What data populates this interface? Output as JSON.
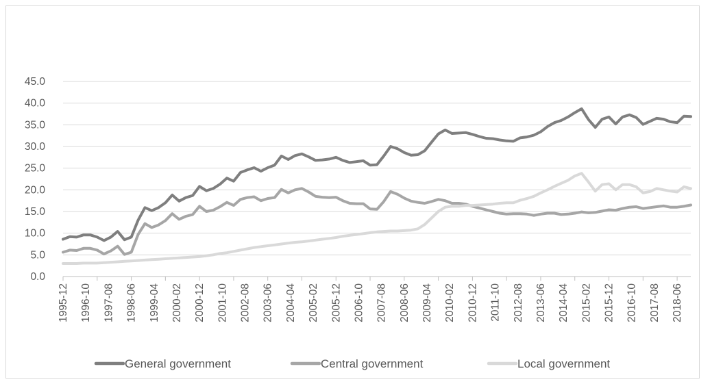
{
  "chart_data": {
    "type": "line",
    "title": "",
    "xlabel": "",
    "ylabel": "",
    "ylim": [
      0,
      45
    ],
    "y_ticks": [
      "0.0",
      "5.0",
      "10.0",
      "15.0",
      "20.0",
      "25.0",
      "30.0",
      "35.0",
      "40.0",
      "45.0"
    ],
    "x_tick_labels": [
      "1995-12",
      "1996-10",
      "1997-08",
      "1998-06",
      "1999-04",
      "2000-02",
      "2000-12",
      "2001-10",
      "2002-08",
      "2003-06",
      "2004-04",
      "2005-02",
      "2005-12",
      "2006-10",
      "2007-08",
      "2008-06",
      "2009-04",
      "2010-02",
      "2010-12",
      "2011-10",
      "2012-08",
      "2013-06",
      "2014-04",
      "2015-02",
      "2015-12",
      "2016-10",
      "2017-08",
      "2018-06"
    ],
    "x_start": "1995-12",
    "x_end": "2018-12",
    "grid": "horizontal",
    "legend_position": "bottom",
    "series": [
      {
        "name": "General government",
        "color": "#7f7f7f",
        "values": [
          8.6,
          9.2,
          9.1,
          9.6,
          9.6,
          9.1,
          8.3,
          9.1,
          10.4,
          8.5,
          9.1,
          13.0,
          15.9,
          15.2,
          15.9,
          17.0,
          18.8,
          17.4,
          18.2,
          18.7,
          20.8,
          19.8,
          20.3,
          21.3,
          22.7,
          22.0,
          24.0,
          24.6,
          25.1,
          24.3,
          25.1,
          25.7,
          27.8,
          27.0,
          27.9,
          28.3,
          27.6,
          26.8,
          26.9,
          27.1,
          27.5,
          26.8,
          26.3,
          26.5,
          26.7,
          25.7,
          25.8,
          27.8,
          30.0,
          29.5,
          28.6,
          28.0,
          28.1,
          29.0,
          31.0,
          32.9,
          33.8,
          33.0,
          33.1,
          33.2,
          32.8,
          32.3,
          31.9,
          31.8,
          31.5,
          31.3,
          31.2,
          32.0,
          32.2,
          32.6,
          33.4,
          34.6,
          35.5,
          36.0,
          36.8,
          37.8,
          38.7,
          36.2,
          34.4,
          36.3,
          36.8,
          35.2,
          36.8,
          37.3,
          36.7,
          35.1,
          35.8,
          36.5,
          36.3,
          35.7,
          35.5,
          37.0,
          36.9
        ]
      },
      {
        "name": "Central government",
        "color": "#a6a6a6",
        "values": [
          5.6,
          6.1,
          6.0,
          6.5,
          6.5,
          6.1,
          5.2,
          5.9,
          7.0,
          5.1,
          5.6,
          9.7,
          12.2,
          11.3,
          11.9,
          12.9,
          14.5,
          13.2,
          13.9,
          14.3,
          16.2,
          15.0,
          15.3,
          16.1,
          17.1,
          16.4,
          17.8,
          18.2,
          18.4,
          17.5,
          18.0,
          18.2,
          20.1,
          19.3,
          20.0,
          20.3,
          19.5,
          18.5,
          18.3,
          18.2,
          18.3,
          17.5,
          16.9,
          16.8,
          16.8,
          15.6,
          15.5,
          17.3,
          19.6,
          19.0,
          18.1,
          17.4,
          17.1,
          16.9,
          17.3,
          17.8,
          17.5,
          16.9,
          16.9,
          16.7,
          16.2,
          15.8,
          15.4,
          15.0,
          14.6,
          14.4,
          14.5,
          14.5,
          14.4,
          14.1,
          14.4,
          14.6,
          14.6,
          14.3,
          14.4,
          14.6,
          14.9,
          14.7,
          14.8,
          15.1,
          15.4,
          15.3,
          15.7,
          16.0,
          16.1,
          15.7,
          15.9,
          16.1,
          16.3,
          16.0,
          16.0,
          16.2,
          16.5
        ]
      },
      {
        "name": "Local government",
        "color": "#d9d9d9",
        "values": [
          3.0,
          3.0,
          3.0,
          3.1,
          3.1,
          3.1,
          3.2,
          3.3,
          3.4,
          3.5,
          3.6,
          3.7,
          3.8,
          3.9,
          4.0,
          4.1,
          4.2,
          4.3,
          4.4,
          4.5,
          4.6,
          4.8,
          5.0,
          5.3,
          5.5,
          5.8,
          6.1,
          6.4,
          6.7,
          6.9,
          7.1,
          7.3,
          7.5,
          7.7,
          7.9,
          8.0,
          8.2,
          8.4,
          8.6,
          8.8,
          9.0,
          9.3,
          9.5,
          9.7,
          9.9,
          10.1,
          10.3,
          10.4,
          10.5,
          10.5,
          10.6,
          10.7,
          11.0,
          12.0,
          13.5,
          15.0,
          16.0,
          16.2,
          16.2,
          16.4,
          16.4,
          16.5,
          16.6,
          16.7,
          16.9,
          17.0,
          17.0,
          17.6,
          18.0,
          18.5,
          19.3,
          20.0,
          20.8,
          21.5,
          22.2,
          23.2,
          23.8,
          21.8,
          19.7,
          21.2,
          21.4,
          20.0,
          21.2,
          21.2,
          20.7,
          19.3,
          19.6,
          20.3,
          20.0,
          19.7,
          19.5,
          20.7,
          20.3
        ]
      }
    ]
  }
}
